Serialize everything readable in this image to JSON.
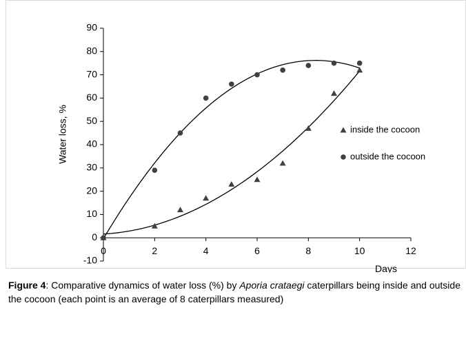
{
  "chart_data": {
    "type": "scatter",
    "y_label": "Water loss, %",
    "x_label": "Days",
    "xlim": [
      0,
      12
    ],
    "xticks": [
      0,
      2,
      4,
      6,
      8,
      10,
      12
    ],
    "ylim": [
      -10,
      90
    ],
    "yticks": [
      -10,
      0,
      10,
      20,
      30,
      40,
      50,
      60,
      70,
      80,
      90
    ],
    "trendline": true,
    "legend": "right",
    "series": [
      {
        "name": "inside the cocoon",
        "marker": "triangle",
        "color": "#404040",
        "x": [
          0,
          2,
          3,
          4,
          5,
          6,
          7,
          8,
          9,
          10
        ],
        "values": [
          0,
          5,
          12,
          17,
          23,
          25,
          32,
          47,
          62,
          72
        ]
      },
      {
        "name": "outside the cocoon",
        "marker": "circle",
        "color": "#404040",
        "x": [
          0,
          2,
          3,
          4,
          5,
          6,
          7,
          8,
          9,
          10
        ],
        "values": [
          0,
          29,
          45,
          60,
          66,
          70,
          72,
          74,
          75,
          75
        ]
      }
    ]
  },
  "caption": {
    "label": "Figure 4",
    "text_1": ": Comparative dynamics of water loss (%) by ",
    "italic": "Aporia crataegi",
    "text_2": " caterpillars being inside and outside the cocoon (each point is an average of 8 caterpillars measured)"
  }
}
